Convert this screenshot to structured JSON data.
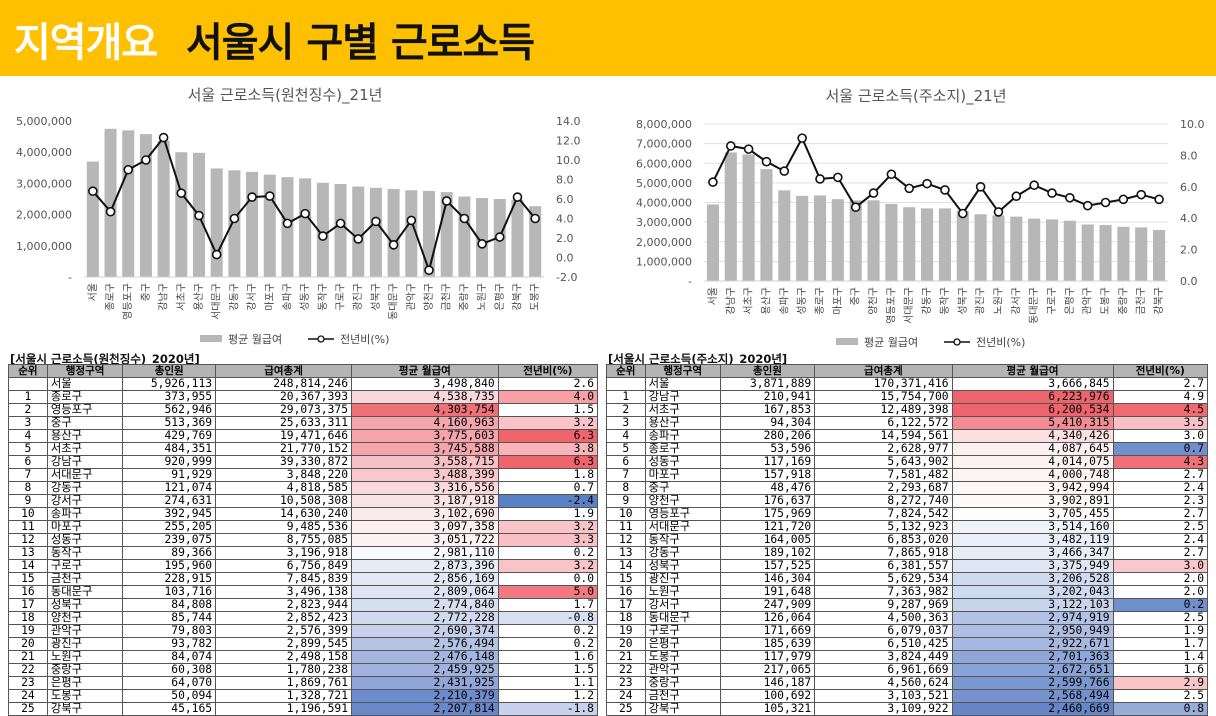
{
  "banner": {
    "tag": "지역개요",
    "title": "서울시 구별 근로소득"
  },
  "chart_data": [
    {
      "type": "bar",
      "title": "서울 근로소득(원천징수)_21년",
      "categories": [
        "서울",
        "종로구",
        "영등포구",
        "중구",
        "강남구",
        "서초구",
        "용산구",
        "서대문구",
        "강동구",
        "강서구",
        "마포구",
        "송파구",
        "성동구",
        "동작구",
        "구로구",
        "광진구",
        "성북구",
        "동대문구",
        "관악구",
        "양천구",
        "금천구",
        "중랑구",
        "노원구",
        "은평구",
        "강북구",
        "도봉구"
      ],
      "series": [
        {
          "name": "평균 월급여",
          "values": [
            3700000,
            4750000,
            4700000,
            4580000,
            4370000,
            4000000,
            3980000,
            3480000,
            3420000,
            3370000,
            3280000,
            3200000,
            3160000,
            3020000,
            2980000,
            2900000,
            2860000,
            2820000,
            2780000,
            2760000,
            2720000,
            2580000,
            2530000,
            2500000,
            2480000,
            2270000
          ],
          "axis": "left"
        },
        {
          "name": "전년비(%)",
          "values": [
            6.8,
            4.7,
            9.0,
            10.0,
            12.3,
            6.6,
            4.3,
            0.3,
            4.0,
            6.2,
            6.3,
            3.5,
            4.5,
            2.2,
            3.5,
            1.9,
            3.7,
            1.3,
            3.8,
            -1.3,
            5.8,
            4.0,
            1.4,
            2.1,
            6.2,
            4.0
          ],
          "axis": "right"
        }
      ],
      "yticks_left": [
        "5,000,000",
        "4,000,000",
        "3,000,000",
        "2,000,000",
        "1,000,000",
        "-"
      ],
      "yticks_right": [
        "14.0",
        "12.0",
        "10.0",
        "8.0",
        "6.0",
        "4.0",
        "2.0",
        "0.0",
        "-2.0"
      ],
      "ylim_left": [
        0,
        5000000
      ],
      "ylim_right": [
        -2,
        14
      ],
      "legend": [
        "평균 월급여",
        "전년비(%)"
      ],
      "legend_position": "bottom"
    },
    {
      "type": "bar",
      "title": "서울 근로소득(주소지)_21년",
      "categories": [
        "서울",
        "강남구",
        "서초구",
        "용산구",
        "송파구",
        "성동구",
        "종로구",
        "마포구",
        "중구",
        "양천구",
        "영등포구",
        "서대문구",
        "강동구",
        "동작구",
        "성북구",
        "광진구",
        "노원구",
        "강서구",
        "동대문구",
        "구로구",
        "은평구",
        "관악구",
        "도봉구",
        "중랑구",
        "금천구",
        "강북구"
      ],
      "series": [
        {
          "name": "평균 월급여",
          "values": [
            3900000,
            6550000,
            6450000,
            5700000,
            4620000,
            4340000,
            4360000,
            4170000,
            4110000,
            4110000,
            3930000,
            3760000,
            3700000,
            3700000,
            3560000,
            3400000,
            3340000,
            3280000,
            3180000,
            3140000,
            3070000,
            2880000,
            2850000,
            2760000,
            2730000,
            2600000
          ],
          "axis": "left"
        },
        {
          "name": "전년비(%)",
          "values": [
            6.3,
            8.6,
            8.4,
            7.6,
            7.0,
            9.1,
            6.5,
            6.6,
            4.7,
            5.6,
            6.8,
            5.9,
            6.2,
            5.8,
            4.3,
            6.0,
            4.4,
            5.4,
            6.1,
            5.6,
            5.3,
            4.8,
            5.0,
            5.2,
            5.5,
            5.2
          ],
          "axis": "right"
        }
      ],
      "yticks_left": [
        "8,000,000",
        "7,000,000",
        "6,000,000",
        "5,000,000",
        "4,000,000",
        "3,000,000",
        "2,000,000",
        "1,000,000",
        "-"
      ],
      "yticks_right": [
        "10.0",
        "8.0",
        "6.0",
        "4.0",
        "2.0",
        "0.0"
      ],
      "ylim_left": [
        0,
        8000000
      ],
      "ylim_right": [
        0,
        10
      ],
      "legend": [
        "평균 월급여",
        "전년비(%)"
      ],
      "legend_position": "bottom"
    },
    {
      "type": "table",
      "caption": "[서울시 근로소득(원천징수)_2020년]",
      "headers": [
        "순위",
        "행정구역",
        "총인원",
        "급여총계",
        "평균 월급여",
        "전년비(%)"
      ],
      "rows": [
        [
          "",
          "서울",
          "5,926,113",
          "248,814,246",
          "3,498,840",
          "2.6"
        ],
        [
          "1",
          "종로구",
          "373,955",
          "20,367,393",
          "4,538,735",
          "4.0"
        ],
        [
          "2",
          "영등포구",
          "562,946",
          "29,073,375",
          "4,303,754",
          "1.5"
        ],
        [
          "3",
          "중구",
          "513,369",
          "25,633,311",
          "4,160,963",
          "3.2"
        ],
        [
          "4",
          "용산구",
          "429,769",
          "19,471,646",
          "3,775,603",
          "6.3"
        ],
        [
          "5",
          "서초구",
          "484,351",
          "21,770,152",
          "3,745,588",
          "3.8"
        ],
        [
          "6",
          "강남구",
          "920,999",
          "39,330,872",
          "3,558,715",
          "6.3"
        ],
        [
          "7",
          "서대문구",
          "91,929",
          "3,848,220",
          "3,488,399",
          "1.8"
        ],
        [
          "8",
          "강동구",
          "121,074",
          "4,818,585",
          "3,316,556",
          "0.7"
        ],
        [
          "9",
          "강서구",
          "274,631",
          "10,508,308",
          "3,187,918",
          "-2.4"
        ],
        [
          "10",
          "송파구",
          "392,945",
          "14,630,240",
          "3,102,690",
          "1.9"
        ],
        [
          "11",
          "마포구",
          "255,205",
          "9,485,536",
          "3,097,358",
          "3.2"
        ],
        [
          "12",
          "성동구",
          "239,075",
          "8,755,085",
          "3,051,722",
          "3.3"
        ],
        [
          "13",
          "동작구",
          "89,366",
          "3,196,918",
          "2,981,110",
          "0.2"
        ],
        [
          "14",
          "구로구",
          "195,960",
          "6,756,849",
          "2,873,396",
          "3.2"
        ],
        [
          "15",
          "금천구",
          "228,915",
          "7,845,839",
          "2,856,169",
          "0.0"
        ],
        [
          "16",
          "동대문구",
          "103,716",
          "3,496,138",
          "2,809,064",
          "5.0"
        ],
        [
          "17",
          "성북구",
          "84,808",
          "2,823,944",
          "2,774,840",
          "1.7"
        ],
        [
          "18",
          "양천구",
          "85,744",
          "2,852,423",
          "2,772,228",
          "-0.8"
        ],
        [
          "19",
          "관악구",
          "79,803",
          "2,576,399",
          "2,690,374",
          "0.2"
        ],
        [
          "20",
          "광진구",
          "93,782",
          "2,899,545",
          "2,576,494",
          "0.2"
        ],
        [
          "21",
          "노원구",
          "84,074",
          "2,498,158",
          "2,476,148",
          "1.6"
        ],
        [
          "22",
          "중랑구",
          "60,308",
          "1,780,238",
          "2,459,925",
          "1.5"
        ],
        [
          "23",
          "은평구",
          "64,070",
          "1,869,761",
          "2,431,925",
          "1.1"
        ],
        [
          "24",
          "도봉구",
          "50,094",
          "1,328,721",
          "2,210,379",
          "1.2"
        ],
        [
          "25",
          "강북구",
          "45,165",
          "1,196,591",
          "2,207,814",
          "-1.8"
        ]
      ],
      "cell_colors": {
        "avg": [
          "#ffffff",
          "#f8d7dc",
          "#f07078",
          "#f4a4aa",
          "#f4a4aa",
          "#f4a4aa",
          "#f7c0c5",
          "#f7c8cc",
          "#f8d9dc",
          "#fae3e5",
          "#fbeaec",
          "#fbeff0",
          "#fcf2f3",
          "#f8f9fc",
          "#e6ebf6",
          "#e2e8f4",
          "#dee4f2",
          "#d7def0",
          "#d0d9ee",
          "#c6d0ea",
          "#b4c2e3",
          "#a4b6df",
          "#a0b2dd",
          "#90a6d8",
          "#6c8ccb",
          "#6888c9"
        ],
        "yoy": [
          "#ffffff",
          "#f8a0a6",
          "#ffffff",
          "#f8c4c8",
          "#f0646c",
          "#f8b4b8",
          "#f0646c",
          "#ffffff",
          "#ffffff",
          "#5a80c6",
          "#ffffff",
          "#f8c4c8",
          "#f8c0c4",
          "#ffffff",
          "#f8c4c8",
          "#ffffff",
          "#f07a80",
          "#ffffff",
          "#d8e0f2",
          "#ffffff",
          "#ffffff",
          "#ffffff",
          "#ffffff",
          "#ffffff",
          "#ffffff",
          "#c8d2ec"
        ]
      }
    },
    {
      "type": "table",
      "caption": "[서울시 근로소득(주소지)_2020년]",
      "headers": [
        "순위",
        "행정구역",
        "총인원",
        "급여총계",
        "평균 월급여",
        "전년비(%)"
      ],
      "rows": [
        [
          "",
          "서울",
          "3,871,889",
          "170,371,416",
          "3,666,845",
          "2.7"
        ],
        [
          "1",
          "강남구",
          "210,941",
          "15,754,700",
          "6,223,976",
          "4.9"
        ],
        [
          "2",
          "서초구",
          "167,853",
          "12,489,398",
          "6,200,534",
          "4.5"
        ],
        [
          "3",
          "용산구",
          "94,304",
          "6,122,572",
          "5,410,315",
          "3.5"
        ],
        [
          "4",
          "송파구",
          "280,206",
          "14,594,561",
          "4,340,426",
          "3.0"
        ],
        [
          "5",
          "종로구",
          "53,596",
          "2,628,977",
          "4,087,645",
          "0.7"
        ],
        [
          "6",
          "성동구",
          "117,169",
          "5,643,902",
          "4,014,075",
          "4.3"
        ],
        [
          "7",
          "마포구",
          "157,918",
          "7,581,482",
          "4,000,748",
          "2.7"
        ],
        [
          "8",
          "중구",
          "48,476",
          "2,293,687",
          "3,942,994",
          "2.4"
        ],
        [
          "9",
          "양천구",
          "176,637",
          "8,272,740",
          "3,902,891",
          "2.3"
        ],
        [
          "10",
          "영등포구",
          "175,969",
          "7,824,542",
          "3,705,455",
          "2.7"
        ],
        [
          "11",
          "서대문구",
          "121,720",
          "5,132,923",
          "3,514,160",
          "2.5"
        ],
        [
          "12",
          "동작구",
          "164,005",
          "6,853,020",
          "3,482,119",
          "2.4"
        ],
        [
          "13",
          "강동구",
          "189,102",
          "7,865,918",
          "3,466,347",
          "2.7"
        ],
        [
          "14",
          "성북구",
          "157,525",
          "6,381,557",
          "3,375,949",
          "3.0"
        ],
        [
          "15",
          "광진구",
          "146,304",
          "5,629,534",
          "3,206,528",
          "2.0"
        ],
        [
          "16",
          "노원구",
          "191,648",
          "7,363,982",
          "3,202,043",
          "2.0"
        ],
        [
          "17",
          "강서구",
          "247,909",
          "9,287,969",
          "3,122,103",
          "0.2"
        ],
        [
          "18",
          "동대문구",
          "126,064",
          "4,500,363",
          "2,974,919",
          "2.5"
        ],
        [
          "19",
          "구로구",
          "171,669",
          "6,079,037",
          "2,950,949",
          "1.9"
        ],
        [
          "20",
          "은평구",
          "185,639",
          "6,510,425",
          "2,922,671",
          "1.7"
        ],
        [
          "21",
          "도봉구",
          "117,979",
          "3,824,449",
          "2,701,363",
          "1.4"
        ],
        [
          "22",
          "관악구",
          "217,065",
          "6,961,669",
          "2,672,651",
          "1.6"
        ],
        [
          "23",
          "중랑구",
          "146,187",
          "4,560,624",
          "2,599,766",
          "2.9"
        ],
        [
          "24",
          "금천구",
          "100,692",
          "3,103,521",
          "2,568,494",
          "2.5"
        ],
        [
          "25",
          "강북구",
          "105,321",
          "3,109,922",
          "2,460,669",
          "0.8"
        ]
      ],
      "cell_colors": {
        "avg": [
          "#ffffff",
          "#ee646c",
          "#ee646c",
          "#f28c92",
          "#fbe0e2",
          "#fcf0f1",
          "#fcf2f3",
          "#fcf4f4",
          "#fdf7f7",
          "#fef9f9",
          "#fdfdfe",
          "#eff2f9",
          "#eaeef8",
          "#e7ecf7",
          "#dfe6f4",
          "#d0dbef",
          "#cedaee",
          "#c8d4ec",
          "#b2c2e4",
          "#adbee2",
          "#a7b9e0",
          "#8ea7d8",
          "#8aa3d6",
          "#7b97d1",
          "#7592cf",
          "#6686c9"
        ],
        "yoy": [
          "#ffffff",
          "#ffffff",
          "#f06a72",
          "#f8c0c4",
          "#ffffff",
          "#7090cc",
          "#f07078",
          "#ffffff",
          "#ffffff",
          "#ffffff",
          "#ffffff",
          "#ffffff",
          "#ffffff",
          "#ffffff",
          "#f8c8cc",
          "#ffffff",
          "#ffffff",
          "#7090cc",
          "#ffffff",
          "#ffffff",
          "#ffffff",
          "#ffffff",
          "#ffffff",
          "#f8c4c8",
          "#ffffff",
          "#98acd8"
        ]
      }
    }
  ]
}
